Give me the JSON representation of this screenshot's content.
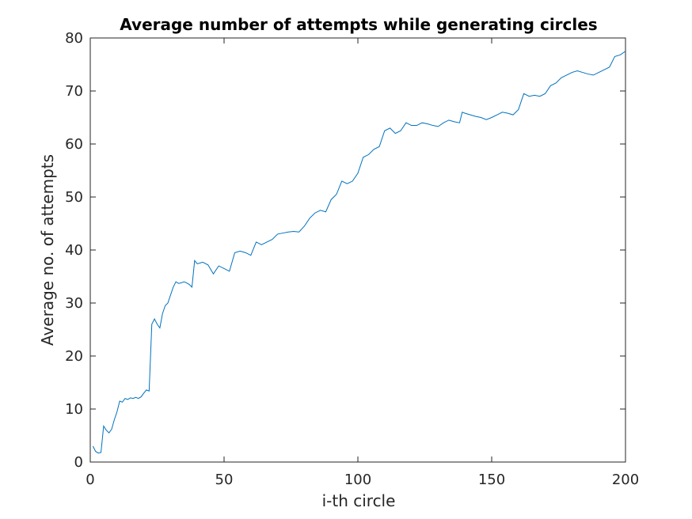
{
  "chart_data": {
    "type": "line",
    "title": "Average number of attempts while generating circles",
    "xlabel": "i-th circle",
    "ylabel": "Average no. of attempts",
    "xlim": [
      0,
      200
    ],
    "ylim": [
      0,
      80
    ],
    "xticks": [
      0,
      50,
      100,
      150,
      200
    ],
    "yticks": [
      0,
      10,
      20,
      30,
      40,
      50,
      60,
      70,
      80
    ],
    "grid": false,
    "line_color": "#0072bd",
    "series": [
      {
        "x": [
          1,
          2,
          3,
          4,
          5,
          6,
          7,
          8,
          9,
          10,
          11,
          12,
          13,
          14,
          15,
          16,
          17,
          18,
          19,
          20,
          21,
          22,
          23,
          24,
          25,
          26,
          27,
          28,
          29,
          30,
          31,
          32,
          33,
          34,
          35,
          36,
          37,
          38,
          39,
          40,
          42,
          44,
          46,
          48,
          50,
          52,
          54,
          56,
          58,
          60,
          62,
          64,
          66,
          68,
          70,
          72,
          74,
          76,
          78,
          80,
          82,
          84,
          86,
          88,
          90,
          92,
          94,
          96,
          98,
          100,
          102,
          104,
          106,
          108,
          110,
          112,
          114,
          116,
          118,
          120,
          122,
          124,
          126,
          128,
          130,
          132,
          134,
          136,
          138,
          139,
          140,
          142,
          144,
          146,
          148,
          150,
          152,
          154,
          156,
          158,
          160,
          162,
          164,
          166,
          168,
          170,
          172,
          174,
          176,
          178,
          180,
          182,
          184,
          186,
          188,
          190,
          192,
          194,
          196,
          198,
          200
        ],
        "y": [
          3.0,
          2.0,
          1.7,
          1.8,
          6.8,
          6.0,
          5.5,
          6.2,
          8.0,
          9.5,
          11.5,
          11.3,
          12.0,
          11.8,
          12.1,
          12.0,
          12.2,
          12.0,
          12.3,
          13.0,
          13.6,
          13.4,
          26.0,
          27.0,
          26.0,
          25.3,
          28.0,
          29.5,
          30.0,
          31.5,
          33.0,
          34.0,
          33.7,
          33.8,
          34.0,
          33.8,
          33.5,
          33.0,
          38.0,
          37.4,
          37.7,
          37.2,
          35.5,
          37.0,
          36.5,
          36.0,
          39.5,
          39.8,
          39.5,
          39.0,
          41.5,
          41.0,
          41.5,
          42.0,
          43.0,
          43.2,
          43.4,
          43.5,
          43.4,
          44.5,
          46.0,
          47.0,
          47.5,
          47.2,
          49.5,
          50.5,
          53.0,
          52.5,
          53.0,
          54.5,
          57.5,
          58.0,
          59.0,
          59.5,
          62.5,
          63.0,
          62.0,
          62.5,
          64.0,
          63.5,
          63.5,
          64.0,
          63.8,
          63.5,
          63.3,
          64.0,
          64.5,
          64.2,
          64.0,
          66.0,
          65.8,
          65.5,
          65.2,
          65.0,
          64.6,
          65.0,
          65.5,
          66.0,
          65.8,
          65.5,
          66.5,
          69.5,
          69.0,
          69.2,
          69.0,
          69.5,
          71.0,
          71.5,
          72.5,
          73.0,
          73.5,
          73.8,
          73.5,
          73.2,
          73.0,
          73.5,
          74.0,
          74.5,
          76.5,
          76.8,
          77.5
        ]
      }
    ]
  }
}
